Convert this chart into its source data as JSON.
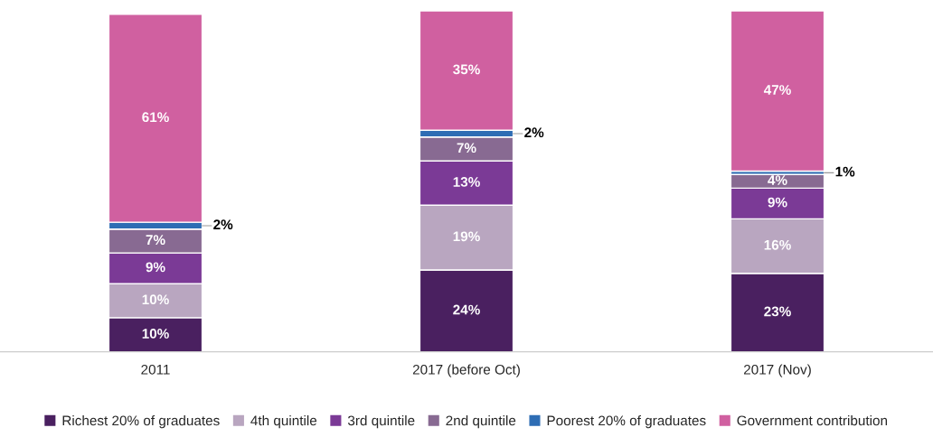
{
  "chart_data": {
    "type": "bar",
    "stacked": true,
    "legend": "bottom",
    "grid": false,
    "categories": [
      "2011",
      "2017 (before Oct)",
      "2017 (Nov)"
    ],
    "series": [
      {
        "name": "Richest 20% of graduates",
        "color": "#4a2060",
        "values": [
          10,
          24,
          23
        ],
        "value_labels": [
          "10%",
          "24%",
          "23%"
        ]
      },
      {
        "name": "4th quintile",
        "color": "#b9a6c0",
        "values": [
          10,
          19,
          16
        ],
        "value_labels": [
          "10%",
          "19%",
          "16%"
        ]
      },
      {
        "name": "3rd quintile",
        "color": "#7b3a96",
        "values": [
          9,
          13,
          9
        ],
        "value_labels": [
          "9%",
          "13%",
          "9%"
        ]
      },
      {
        "name": "2nd quintile",
        "color": "#886a92",
        "values": [
          7,
          7,
          4
        ],
        "value_labels": [
          "7%",
          "7%",
          "4%"
        ]
      },
      {
        "name": "Poorest 20% of graduates",
        "color": "#2e6db4",
        "values": [
          2,
          2,
          1
        ],
        "value_labels": [
          "2%",
          "2%",
          "1%"
        ]
      },
      {
        "name": "Government contribution",
        "color": "#d060a0",
        "values": [
          61,
          35,
          47
        ],
        "value_labels": [
          "61%",
          "35%",
          "47%"
        ]
      }
    ]
  }
}
